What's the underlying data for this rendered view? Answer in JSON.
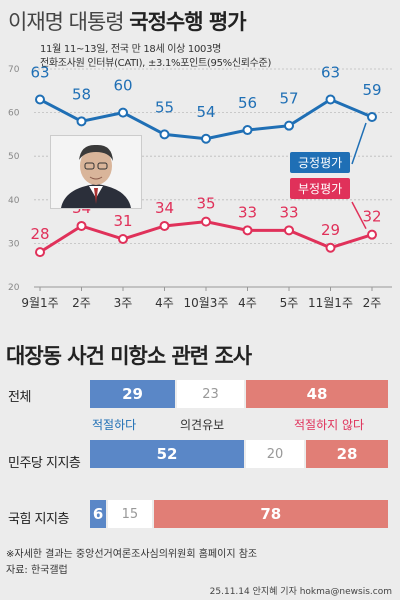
{
  "header": {
    "title_light": "이재명 대통령",
    "title_bold": "국정수행 평가",
    "subtitle_line1": "11월 11~13일, 전국 만 18세 이상 1003명",
    "subtitle_line2": "전화조사원 인터뷰(CATI), ±3.1%포인트(95%신뢰수준)"
  },
  "chart_data": [
    {
      "type": "line",
      "categories": [
        "9월1주",
        "2주",
        "3주",
        "4주",
        "10월3주",
        "4주",
        "5주",
        "11월1주",
        "2주"
      ],
      "series": [
        {
          "name": "긍정평가",
          "color": "#1f6fb5",
          "values": [
            63,
            58,
            60,
            55,
            54,
            56,
            57,
            63,
            59
          ]
        },
        {
          "name": "부정평가",
          "color": "#e0315a",
          "values": [
            28,
            34,
            31,
            34,
            35,
            33,
            33,
            29,
            32
          ]
        }
      ],
      "y_ticks": [
        20,
        30,
        40,
        50,
        60,
        70
      ],
      "ylim": [
        20,
        70
      ],
      "grid": true,
      "legend": "right"
    },
    {
      "type": "bar",
      "title": "대장동 사건 미항소 관련 조사",
      "stacked": true,
      "categories": [
        "전체",
        "민주당 지지층",
        "국힘 지지층"
      ],
      "series": [
        {
          "name": "적절하다",
          "color": "#5a87c7",
          "values": [
            29,
            52,
            6
          ]
        },
        {
          "name": "의견유보",
          "color": "#ffffff",
          "values": [
            23,
            20,
            15
          ]
        },
        {
          "name": "적절하지 않다",
          "color": "#e17e76",
          "values": [
            48,
            28,
            78
          ]
        }
      ]
    }
  ],
  "footnotes": {
    "note": "※자세한 결과는 중앙선거여론조사심의위원회 홈페이지 참조",
    "source": "자료: 한국갤럽",
    "credit": "25.11.14 안지혜 기자  hokma@newsis.com"
  }
}
